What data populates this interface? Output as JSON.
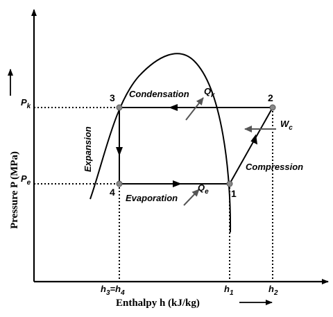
{
  "axes": {
    "y_title": "Pressure   P  (MPa)",
    "x_title": "Enthalpy  h (kJ/kg)"
  },
  "pressure_ticks": {
    "pk_main": "P",
    "pk_sub": "k",
    "pe_main": "P",
    "pe_sub": "e"
  },
  "enthalpy_ticks": {
    "h3h4": {
      "a": "h",
      "a_sub": "3",
      "eq": "=h",
      "b_sub": "4"
    },
    "h1": {
      "main": "h",
      "sub": "1"
    },
    "h2": {
      "main": "h",
      "sub": "2"
    }
  },
  "states": {
    "s1": "1",
    "s2": "2",
    "s3": "3",
    "s4": "4"
  },
  "processes": {
    "condensation": "Condensation",
    "compression": "Compression",
    "expansion": "Expansion",
    "evaporation": "Evaporation"
  },
  "heat_work": {
    "qk_main": "Q",
    "qk_sub": "k",
    "qe_main": "Q",
    "qe_sub": "e",
    "wc_main": "W",
    "wc_sub": "c"
  }
}
